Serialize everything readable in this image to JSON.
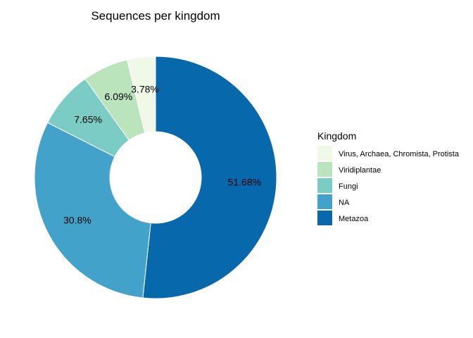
{
  "chart_data": {
    "type": "pie",
    "variant": "donut",
    "title": "Sequences per kingdom",
    "legend_title": "Kingdom",
    "legend_position": "right",
    "slices": [
      {
        "name": "Metazoa",
        "value": 51.68,
        "label": "51.68%",
        "color": "#0868AC"
      },
      {
        "name": "NA",
        "value": 30.8,
        "label": "30.8%",
        "color": "#43A2CA"
      },
      {
        "name": "Fungi",
        "value": 7.65,
        "label": "7.65%",
        "color": "#7BCCC4"
      },
      {
        "name": "Viridiplantae",
        "value": 6.09,
        "label": "6.09%",
        "color": "#BAE4BC"
      },
      {
        "name": "Virus, Archaea, Chromista, Protista",
        "value": 3.78,
        "label": "3.78%",
        "color": "#F0F9E8"
      }
    ],
    "legend_order": [
      "Virus, Archaea, Chromista, Protista",
      "Viridiplantae",
      "Fungi",
      "NA",
      "Metazoa"
    ]
  }
}
